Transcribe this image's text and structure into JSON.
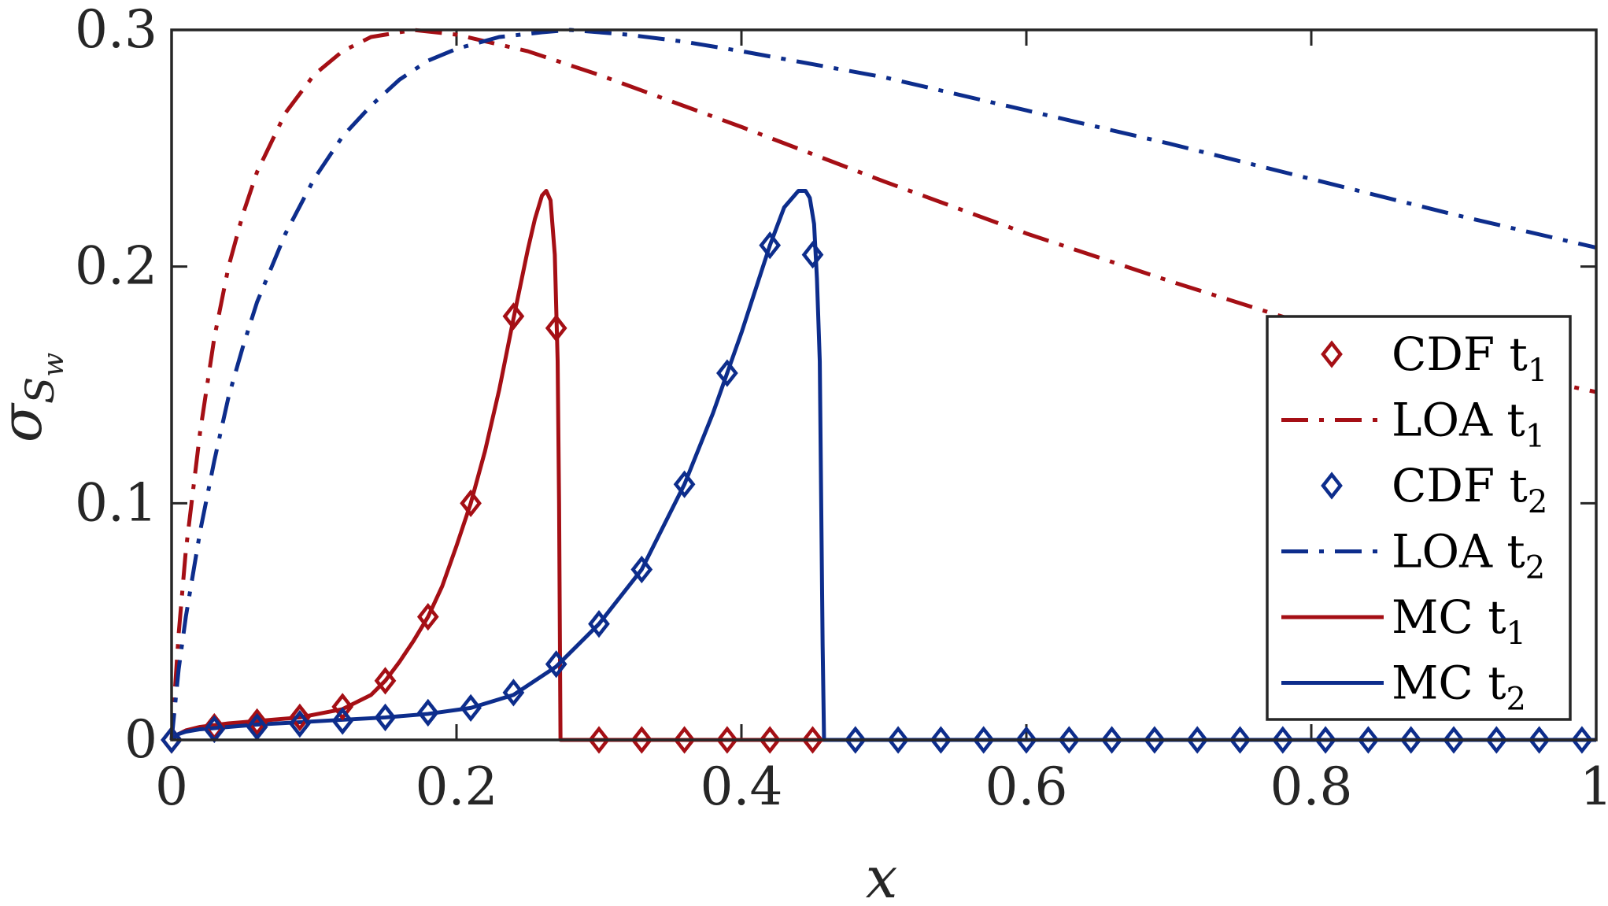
{
  "chart_data": {
    "type": "line",
    "xlabel": "x",
    "ylabel": "σ",
    "ylabel_sub": "S",
    "ylabel_subsub": "w",
    "xlim": [
      0,
      1
    ],
    "ylim": [
      0,
      0.3
    ],
    "x_ticks": [
      "0",
      "0.2",
      "0.4",
      "0.6",
      "0.8",
      "1"
    ],
    "y_ticks": [
      "0",
      "0.1",
      "0.2",
      "0.3"
    ],
    "grid": false,
    "legend_placement": "right",
    "colors": {
      "red": "#A50F15",
      "blue": "#0D2D8C"
    },
    "series": [
      {
        "name": "CDF t",
        "name_sub": "1",
        "style": "diamond",
        "color": "#A50F15",
        "x": [
          0,
          0.03,
          0.06,
          0.09,
          0.12,
          0.15,
          0.18,
          0.21,
          0.24,
          0.27,
          0.3,
          0.33,
          0.36,
          0.39,
          0.42,
          0.45
        ],
        "y": [
          0,
          0.0055,
          0.0075,
          0.0095,
          0.014,
          0.025,
          0.052,
          0.1,
          0.179,
          0.174,
          0,
          0,
          0,
          0,
          0,
          0
        ]
      },
      {
        "name": "LOA t",
        "name_sub": "1",
        "style": "dashdot",
        "color": "#A50F15",
        "x": [
          0,
          0.005,
          0.01,
          0.02,
          0.03,
          0.04,
          0.05,
          0.06,
          0.08,
          0.1,
          0.12,
          0.14,
          0.17,
          0.2,
          0.25,
          0.3,
          0.4,
          0.5,
          0.6,
          0.7,
          0.8,
          0.9,
          1.0
        ],
        "y": [
          0,
          0.045,
          0.08,
          0.13,
          0.17,
          0.2,
          0.222,
          0.24,
          0.265,
          0.281,
          0.291,
          0.297,
          0.3,
          0.298,
          0.291,
          0.281,
          0.259,
          0.236,
          0.214,
          0.194,
          0.175,
          0.16,
          0.147
        ]
      },
      {
        "name": "CDF t",
        "name_sub": "2",
        "style": "diamond",
        "color": "#0D2D8C",
        "x": [
          0,
          0.03,
          0.06,
          0.09,
          0.12,
          0.15,
          0.18,
          0.21,
          0.24,
          0.27,
          0.3,
          0.33,
          0.36,
          0.39,
          0.42,
          0.45,
          0.48,
          0.51,
          0.54,
          0.57,
          0.6,
          0.63,
          0.66,
          0.69,
          0.72,
          0.75,
          0.78,
          0.81,
          0.84,
          0.87,
          0.9,
          0.93,
          0.96,
          0.99
        ],
        "y": [
          0,
          0.0045,
          0.0055,
          0.0068,
          0.008,
          0.0095,
          0.0115,
          0.0135,
          0.02,
          0.032,
          0.049,
          0.072,
          0.108,
          0.155,
          0.209,
          0.205,
          0,
          0,
          0,
          0,
          0,
          0,
          0,
          0,
          0,
          0,
          0,
          0,
          0,
          0,
          0,
          0,
          0,
          0
        ]
      },
      {
        "name": "LOA t",
        "name_sub": "2",
        "style": "dashdot",
        "color": "#0D2D8C",
        "x": [
          0,
          0.005,
          0.01,
          0.02,
          0.03,
          0.04,
          0.05,
          0.06,
          0.08,
          0.1,
          0.12,
          0.14,
          0.16,
          0.18,
          0.2,
          0.23,
          0.26,
          0.28,
          0.32,
          0.36,
          0.4,
          0.5,
          0.6,
          0.7,
          0.8,
          0.9,
          1.0
        ],
        "y": [
          0,
          0.03,
          0.052,
          0.088,
          0.118,
          0.145,
          0.166,
          0.185,
          0.214,
          0.237,
          0.255,
          0.268,
          0.279,
          0.287,
          0.292,
          0.297,
          0.299,
          0.3,
          0.298,
          0.295,
          0.291,
          0.28,
          0.266,
          0.252,
          0.237,
          0.222,
          0.208
        ]
      },
      {
        "name": "MC t",
        "name_sub": "1",
        "style": "solid",
        "color": "#A50F15",
        "x": [
          0,
          0.005,
          0.01,
          0.02,
          0.04,
          0.06,
          0.09,
          0.12,
          0.14,
          0.15,
          0.16,
          0.17,
          0.18,
          0.19,
          0.2,
          0.21,
          0.22,
          0.23,
          0.24,
          0.25,
          0.255,
          0.26,
          0.263,
          0.266,
          0.269,
          0.271,
          0.272,
          0.273,
          0.3,
          0.46
        ],
        "y": [
          0,
          0.0025,
          0.004,
          0.0055,
          0.007,
          0.008,
          0.0095,
          0.013,
          0.019,
          0.025,
          0.033,
          0.042,
          0.052,
          0.065,
          0.082,
          0.1,
          0.122,
          0.148,
          0.178,
          0.207,
          0.22,
          0.23,
          0.232,
          0.228,
          0.205,
          0.16,
          0.1,
          0,
          0,
          0
        ]
      },
      {
        "name": "MC t",
        "name_sub": "2",
        "style": "solid",
        "color": "#0D2D8C",
        "x": [
          0,
          0.005,
          0.01,
          0.02,
          0.04,
          0.06,
          0.09,
          0.12,
          0.15,
          0.18,
          0.21,
          0.24,
          0.27,
          0.3,
          0.33,
          0.36,
          0.38,
          0.4,
          0.42,
          0.43,
          0.44,
          0.445,
          0.448,
          0.451,
          0.453,
          0.455,
          0.456,
          0.457,
          0.458,
          0.5,
          0.6,
          0.7,
          0.8,
          0.9,
          1.0
        ],
        "y": [
          0,
          0.0025,
          0.0035,
          0.0045,
          0.0055,
          0.0065,
          0.0075,
          0.0085,
          0.0095,
          0.011,
          0.0135,
          0.019,
          0.031,
          0.049,
          0.072,
          0.108,
          0.138,
          0.172,
          0.209,
          0.225,
          0.232,
          0.232,
          0.229,
          0.218,
          0.195,
          0.16,
          0.1,
          0.04,
          0,
          0,
          0,
          0,
          0,
          0,
          0
        ]
      }
    ]
  }
}
